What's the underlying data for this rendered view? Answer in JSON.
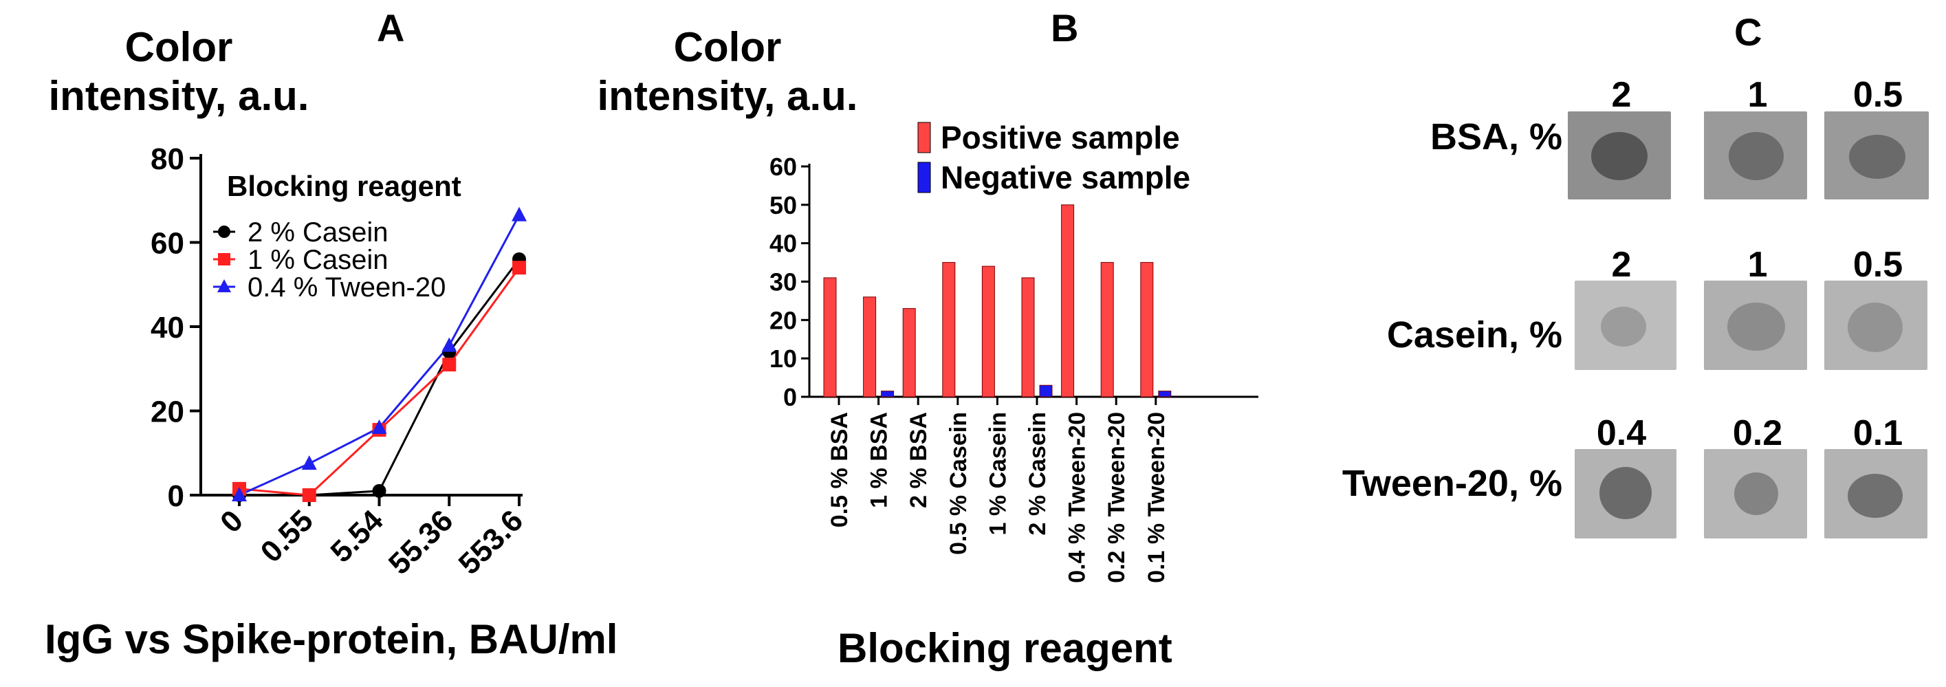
{
  "panel_labels": {
    "a": "A",
    "b": "B",
    "c": "C"
  },
  "chart_data": [
    {
      "type": "line",
      "panel": "A",
      "ylabel_line1": "Color",
      "ylabel_line2": "intensity, a.u.",
      "xlabel": "IgG vs Spike-protein, BAU/ml",
      "legend_title": "Blocking reagent",
      "categories": [
        "0",
        "0.55",
        "5.54",
        "55.36",
        "553.6"
      ],
      "ylim": [
        0,
        80
      ],
      "yticks": [
        "0",
        "20",
        "40",
        "60",
        "80"
      ],
      "series": [
        {
          "name": "2 % Casein",
          "color": "#000000",
          "marker": "circle",
          "values": [
            0,
            0,
            1,
            34,
            56
          ]
        },
        {
          "name": "1 % Casein",
          "color": "#ff2020",
          "marker": "square",
          "values": [
            1.5,
            0,
            15.5,
            31,
            54
          ]
        },
        {
          "name": "0.4 % Tween-20",
          "color": "#2020ee",
          "marker": "triangle",
          "values": [
            0,
            7.5,
            16,
            35.5,
            66.5
          ]
        }
      ]
    },
    {
      "type": "bar",
      "panel": "B",
      "ylabel_line1": "Color",
      "ylabel_line2": "intensity, a.u.",
      "xlabel": "Blocking reagent",
      "categories": [
        "0.5 % BSA",
        "1 % BSA",
        "2 % BSA",
        "0.5 % Casein",
        "1 % Casein",
        "2 % Casein",
        "0.4 % Tween-20",
        "0.2 % Tween-20",
        "0.1 % Tween-20"
      ],
      "ylim": [
        0,
        60
      ],
      "yticks": [
        "0",
        "10",
        "20",
        "30",
        "40",
        "50",
        "60"
      ],
      "series": [
        {
          "name": "Positive sample",
          "color": "#ff4444",
          "values": [
            31,
            26,
            23,
            35,
            34,
            31,
            50,
            35,
            35
          ]
        },
        {
          "name": "Negative sample",
          "color": "#1a1aee",
          "values": [
            0,
            1.5,
            0,
            0,
            0,
            3,
            0,
            0,
            1.5
          ]
        }
      ]
    }
  ],
  "panel_c": {
    "rows": [
      {
        "label": "BSA, %",
        "columns": [
          "2",
          "1",
          "0.5"
        ]
      },
      {
        "label": "Casein, %",
        "columns": [
          "2",
          "1",
          "0.5"
        ]
      },
      {
        "label": "Tween-20, %",
        "columns": [
          "0.4",
          "0.2",
          "0.1"
        ]
      }
    ]
  }
}
